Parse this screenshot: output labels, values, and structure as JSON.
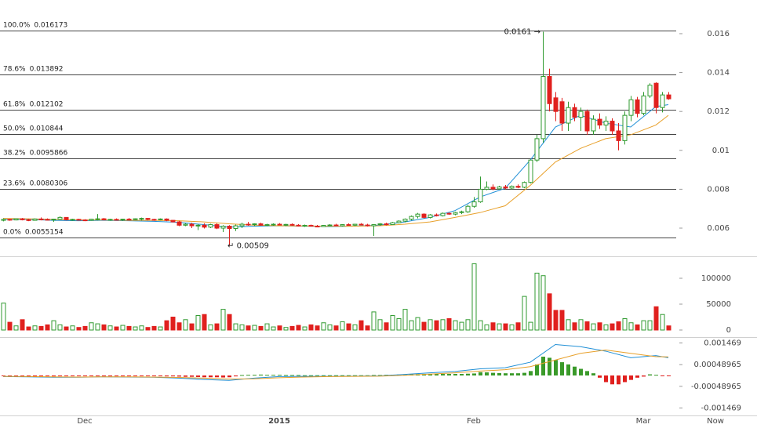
{
  "chart_data": [
    {
      "type": "candlestick",
      "categories": [
        null,
        null,
        null,
        null,
        null,
        null,
        null,
        null,
        null,
        null,
        null,
        null,
        null,
        "Dec",
        null,
        null,
        null,
        null,
        null,
        null,
        null,
        null,
        null,
        null,
        null,
        null,
        null,
        null,
        null,
        null,
        null,
        null,
        null,
        null,
        null,
        null,
        null,
        null,
        null,
        null,
        null,
        null,
        null,
        null,
        "2015",
        null,
        null,
        null,
        null,
        null,
        null,
        null,
        null,
        null,
        null,
        null,
        null,
        null,
        null,
        null,
        null,
        null,
        null,
        null,
        null,
        null,
        null,
        null,
        null,
        null,
        null,
        null,
        null,
        null,
        null,
        "Feb",
        null,
        null,
        null,
        null,
        null,
        null,
        null,
        null,
        null,
        null,
        null,
        null,
        null,
        null,
        null,
        null,
        null,
        null,
        null,
        null,
        null,
        null,
        null,
        null,
        null,
        null,
        "Mar",
        null,
        null,
        null,
        null
      ],
      "x_end_label": "Now",
      "open": [
        0.0064,
        0.00645,
        0.00642,
        0.00648,
        0.00643,
        0.0064,
        0.00647,
        0.00645,
        0.00642,
        0.00646,
        0.00655,
        0.00643,
        0.00645,
        0.00642,
        0.0064,
        0.00646,
        0.00648,
        0.00643,
        0.00645,
        0.00642,
        0.00646,
        0.00645,
        0.00648,
        0.0065,
        0.00645,
        0.00643,
        0.00647,
        0.0064,
        0.00632,
        0.00615,
        0.0062,
        0.00612,
        0.00615,
        0.00605,
        0.00618,
        0.006,
        0.0061,
        0.00598,
        0.00612,
        0.0062,
        0.00618,
        0.00622,
        0.00615,
        0.00618,
        0.0062,
        0.00616,
        0.00619,
        0.00615,
        0.00612,
        0.00614,
        0.0061,
        0.00608,
        0.00614,
        0.00616,
        0.00612,
        0.00618,
        0.00615,
        0.0062,
        0.00616,
        0.00612,
        0.00618,
        0.00622,
        0.00618,
        0.00628,
        0.00636,
        0.00646,
        0.0066,
        0.00672,
        0.00655,
        0.00668,
        0.00664,
        0.00676,
        0.00672,
        0.0068,
        0.00684,
        0.00712,
        0.00735,
        0.008,
        0.0081,
        0.00802,
        0.00812,
        0.00806,
        0.00815,
        0.0081,
        0.00835,
        0.0095,
        0.0106,
        0.0138,
        0.0127,
        0.0125,
        0.0114,
        0.0122,
        0.0117,
        0.012,
        0.011,
        0.0116,
        0.0113,
        0.0115,
        0.011,
        0.0105,
        0.0118,
        0.0126,
        0.0119,
        0.0128,
        0.01345,
        0.0122,
        0.01285
      ],
      "high": [
        0.0065,
        0.00648,
        0.0065,
        0.00652,
        0.00648,
        0.0065,
        0.00655,
        0.0065,
        0.00648,
        0.0066,
        0.00656,
        0.00648,
        0.00648,
        0.00646,
        0.00648,
        0.00672,
        0.00652,
        0.00648,
        0.0065,
        0.00648,
        0.00652,
        0.0065,
        0.00654,
        0.00652,
        0.00648,
        0.0065,
        0.0065,
        0.00642,
        0.00638,
        0.00625,
        0.00628,
        0.0062,
        0.00625,
        0.00622,
        0.00625,
        0.00615,
        0.00615,
        0.00618,
        0.00628,
        0.00632,
        0.00625,
        0.00628,
        0.00622,
        0.00625,
        0.00626,
        0.00622,
        0.00624,
        0.0062,
        0.00618,
        0.00618,
        0.00616,
        0.00616,
        0.0062,
        0.00622,
        0.0062,
        0.00624,
        0.00622,
        0.00626,
        0.00622,
        0.0062,
        0.00626,
        0.00628,
        0.00632,
        0.0064,
        0.0065,
        0.00665,
        0.00678,
        0.00676,
        0.00672,
        0.00675,
        0.0068,
        0.0068,
        0.00684,
        0.0069,
        0.0072,
        0.0076,
        0.00865,
        0.0084,
        0.00825,
        0.00818,
        0.00822,
        0.0082,
        0.00825,
        0.0084,
        0.0095,
        0.0108,
        0.0161,
        0.0142,
        0.013,
        0.0127,
        0.0125,
        0.0124,
        0.0122,
        0.0121,
        0.0118,
        0.0119,
        0.01175,
        0.01165,
        0.0114,
        0.012,
        0.0128,
        0.01275,
        0.013,
        0.01345,
        0.0135,
        0.013,
        0.013
      ],
      "low": [
        0.00635,
        0.00638,
        0.0064,
        0.0064,
        0.00636,
        0.00638,
        0.0064,
        0.0064,
        0.00632,
        0.00644,
        0.0064,
        0.00638,
        0.0064,
        0.00636,
        0.00638,
        0.0064,
        0.0064,
        0.00638,
        0.0064,
        0.00638,
        0.0064,
        0.00642,
        0.0064,
        0.0064,
        0.00638,
        0.0064,
        0.00636,
        0.0063,
        0.0061,
        0.0061,
        0.006,
        0.0059,
        0.00598,
        0.006,
        0.00595,
        0.0058,
        0.00509,
        0.00585,
        0.006,
        0.00612,
        0.0061,
        0.00612,
        0.0061,
        0.00612,
        0.00614,
        0.0061,
        0.00612,
        0.00608,
        0.00606,
        0.00608,
        0.00604,
        0.00606,
        0.0061,
        0.0061,
        0.00608,
        0.00612,
        0.0061,
        0.00614,
        0.00608,
        0.0056,
        0.00612,
        0.00614,
        0.00616,
        0.00624,
        0.0063,
        0.0064,
        0.0065,
        0.0065,
        0.0065,
        0.0066,
        0.0066,
        0.00668,
        0.00666,
        0.00672,
        0.00678,
        0.00705,
        0.0073,
        0.00795,
        0.00795,
        0.00798,
        0.008,
        0.008,
        0.00805,
        0.00805,
        0.0083,
        0.0094,
        0.0104,
        0.012,
        0.0115,
        0.011,
        0.011,
        0.0115,
        0.011,
        0.0108,
        0.0108,
        0.0111,
        0.011,
        0.0108,
        0.01,
        0.0103,
        0.0115,
        0.0117,
        0.0118,
        0.0127,
        0.0119,
        0.01195,
        0.0126
      ],
      "close": [
        0.00645,
        0.00642,
        0.00648,
        0.00643,
        0.0064,
        0.00647,
        0.00645,
        0.00642,
        0.00646,
        0.00655,
        0.00643,
        0.00645,
        0.00642,
        0.0064,
        0.00646,
        0.00648,
        0.00643,
        0.00645,
        0.00642,
        0.00646,
        0.00645,
        0.00648,
        0.0065,
        0.00645,
        0.00643,
        0.00647,
        0.0064,
        0.00632,
        0.00615,
        0.0062,
        0.00612,
        0.00615,
        0.00605,
        0.00618,
        0.006,
        0.0061,
        0.00598,
        0.00612,
        0.0062,
        0.00618,
        0.00622,
        0.00615,
        0.00618,
        0.0062,
        0.00616,
        0.00619,
        0.00615,
        0.00612,
        0.00614,
        0.0061,
        0.00608,
        0.00614,
        0.00616,
        0.00612,
        0.00618,
        0.00615,
        0.0062,
        0.00616,
        0.00612,
        0.00618,
        0.00622,
        0.00618,
        0.00628,
        0.00636,
        0.00646,
        0.0066,
        0.00672,
        0.00655,
        0.00668,
        0.00664,
        0.00676,
        0.00672,
        0.0068,
        0.00684,
        0.00712,
        0.00735,
        0.008,
        0.0081,
        0.00802,
        0.00812,
        0.00806,
        0.00815,
        0.0081,
        0.00835,
        0.0095,
        0.0106,
        0.0138,
        0.0124,
        0.012,
        0.0114,
        0.0122,
        0.0117,
        0.012,
        0.011,
        0.0116,
        0.0113,
        0.0115,
        0.011,
        0.0105,
        0.0118,
        0.0126,
        0.0119,
        0.0128,
        0.01335,
        0.0122,
        0.01285,
        0.01265
      ],
      "up_color": "#2f9a2f",
      "down_color": "#e0201e",
      "ylim": [
        0.00463,
        0.01753
      ],
      "yticks": [
        0.006,
        0.008,
        0.01,
        0.012,
        0.014,
        0.016
      ],
      "lines": [
        {
          "color": "#1f8fd6",
          "x": [
            0,
            4,
            8,
            12,
            16,
            20,
            24,
            28,
            32,
            36,
            40,
            44,
            48,
            52,
            56,
            60,
            64,
            68,
            72,
            76,
            80,
            84,
            88,
            92,
            96,
            100,
            104,
            106
          ],
          "values": [
            0.00645,
            0.00645,
            0.0064,
            0.00638,
            0.0064,
            0.00638,
            0.00635,
            0.0063,
            0.00618,
            0.00605,
            0.0061,
            0.00612,
            0.0061,
            0.00608,
            0.0061,
            0.00615,
            0.00632,
            0.00655,
            0.0069,
            0.0076,
            0.00805,
            0.0095,
            0.0112,
            0.0118,
            0.0114,
            0.0112,
            0.01225,
            0.01235
          ]
        },
        {
          "color": "#e8a02a",
          "x": [
            0,
            4,
            8,
            12,
            16,
            20,
            24,
            28,
            32,
            36,
            40,
            44,
            48,
            52,
            56,
            60,
            64,
            68,
            72,
            76,
            80,
            84,
            88,
            92,
            96,
            100,
            104,
            106
          ],
          "values": [
            0.0065,
            0.00648,
            0.00645,
            0.00642,
            0.00642,
            0.0064,
            0.0064,
            0.00638,
            0.00632,
            0.00622,
            0.00615,
            0.00612,
            0.00611,
            0.0061,
            0.0061,
            0.00612,
            0.0062,
            0.00632,
            0.00655,
            0.0068,
            0.00715,
            0.0082,
            0.0094,
            0.0101,
            0.0106,
            0.0108,
            0.0113,
            0.0118
          ]
        }
      ],
      "fib_levels": [
        {
          "percent": "100.0%",
          "price": 0.016173
        },
        {
          "percent": "78.6%",
          "price": 0.013892
        },
        {
          "percent": "61.8%",
          "price": 0.012102
        },
        {
          "percent": "50.0%",
          "price": 0.010844
        },
        {
          "percent": "38.2%",
          "price": 0.0095866
        },
        {
          "percent": "23.6%",
          "price": 0.0080306
        },
        {
          "percent": "0.0%",
          "price": 0.0055154
        }
      ],
      "annotations": [
        {
          "value": 0.0161,
          "x": 86
        },
        {
          "value": 0.00509,
          "x": 36
        }
      ]
    },
    {
      "type": "volume",
      "values": [
        52000,
        15000,
        8000,
        20000,
        6000,
        8000,
        7000,
        10000,
        18000,
        10000,
        6000,
        8000,
        5000,
        7000,
        14000,
        12000,
        10000,
        8000,
        6000,
        9000,
        7000,
        6000,
        8000,
        5000,
        7000,
        6000,
        18000,
        25000,
        14000,
        20000,
        12000,
        28000,
        30000,
        10000,
        12000,
        40000,
        30000,
        12000,
        10000,
        8000,
        9000,
        7000,
        12000,
        6000,
        8000,
        5000,
        7000,
        9000,
        6000,
        10000,
        8000,
        14000,
        10000,
        8000,
        16000,
        12000,
        10000,
        18000,
        8000,
        35000,
        20000,
        14000,
        28000,
        22000,
        40000,
        18000,
        24000,
        15000,
        20000,
        18000,
        20000,
        22000,
        18000,
        15000,
        20000,
        128000,
        18000,
        10000,
        14000,
        12000,
        12000,
        10000,
        14000,
        65000,
        15000,
        110000,
        105000,
        70000,
        38000,
        38000,
        20000,
        14000,
        20000,
        16000,
        12000,
        14000,
        10000,
        12000,
        16000,
        22000,
        14000,
        10000,
        18000,
        18000,
        45000,
        30000,
        8000
      ],
      "ylim": [
        -10600,
        137900
      ],
      "yticks": [
        0,
        50000,
        100000
      ]
    },
    {
      "type": "macd",
      "values": [
        -3e-05,
        -3e-05,
        -4e-05,
        -3e-05,
        -3e-05,
        -2e-05,
        -3e-05,
        -3e-05,
        -4e-05,
        -2e-05,
        -3e-05,
        -3e-05,
        -2e-05,
        -3e-05,
        -2e-05,
        -2e-05,
        -3e-05,
        -2e-05,
        -2e-05,
        -3e-05,
        -2e-05,
        -2e-05,
        -3e-05,
        -2e-05,
        -3e-05,
        -3e-05,
        -4e-05,
        -4e-05,
        -5e-05,
        -6e-05,
        -6e-05,
        -7e-05,
        -8e-05,
        -8e-05,
        -8e-05,
        -9e-05,
        -8e-05,
        -4e-05,
        2e-05,
        3e-05,
        3e-05,
        4e-05,
        3e-05,
        3e-05,
        3e-05,
        2e-05,
        2e-05,
        2e-05,
        1e-05,
        1e-05,
        1e-05,
        1e-05,
        1e-05,
        1e-05,
        1e-05,
        1e-05,
        1e-05,
        1e-05,
        1e-05,
        2e-05,
        2e-05,
        3e-05,
        3e-05,
        4e-05,
        4e-05,
        5e-05,
        6e-05,
        6e-05,
        7e-05,
        7e-05,
        7e-05,
        7e-05,
        7e-05,
        7e-05,
        8e-05,
        9e-05,
        0.00015,
        0.00014,
        0.00012,
        0.00011,
        0.0001,
        0.0001,
        0.0001,
        0.00012,
        0.0002,
        0.0005,
        0.00085,
        0.0008,
        0.0007,
        0.0006,
        0.0005,
        0.0004,
        0.0003,
        0.0002,
        0.0001,
        -0.0001,
        -0.0003,
        -0.0004,
        -0.0004,
        -0.0003,
        -0.0002,
        -0.0001,
        -5e-05,
        5e-05,
        3e-05,
        -2e-05,
        -3e-05
      ],
      "pos_color": "#3a9a2a",
      "neg_color": "#e0201e",
      "ylim": [
        -0.001807,
        0.001665
      ],
      "yticks": [
        -0.001469,
        -0.00048965,
        0.00048965,
        0.001469
      ],
      "lines": [
        {
          "color": "#1f8fd6",
          "x": [
            0,
            4,
            8,
            12,
            16,
            20,
            24,
            28,
            32,
            36,
            40,
            44,
            48,
            52,
            56,
            60,
            64,
            68,
            72,
            76,
            80,
            84,
            88,
            92,
            96,
            100,
            104,
            106
          ],
          "values": [
            -5e-05,
            -6e-05,
            -8e-05,
            -8e-05,
            -6e-05,
            -7e-05,
            -8e-05,
            -0.00012,
            -0.00018,
            -0.00022,
            -0.00012,
            -5e-05,
            -4e-05,
            -4e-05,
            -3e-05,
            -2e-05,
            5e-05,
            0.00012,
            0.00018,
            0.0003,
            0.00035,
            0.0006,
            0.0014,
            0.0013,
            0.0011,
            0.0008,
            0.0009,
            0.0008
          ]
        },
        {
          "color": "#e8a02a",
          "x": [
            0,
            4,
            8,
            12,
            16,
            20,
            24,
            28,
            32,
            36,
            40,
            44,
            48,
            52,
            56,
            60,
            64,
            68,
            72,
            76,
            80,
            84,
            88,
            92,
            96,
            100,
            104,
            106
          ],
          "values": [
            -4e-05,
            -5e-05,
            -6e-05,
            -7e-05,
            -6e-05,
            -6e-05,
            -7e-05,
            -9e-05,
            -0.00012,
            -0.00016,
            -0.00015,
            -0.0001,
            -7e-05,
            -5e-05,
            -4e-05,
            -3e-05,
            1e-05,
            6e-05,
            0.00012,
            0.0002,
            0.00026,
            0.0004,
            0.0007,
            0.001,
            0.00115,
            0.001,
            0.00085,
            0.00084
          ]
        }
      ]
    }
  ]
}
